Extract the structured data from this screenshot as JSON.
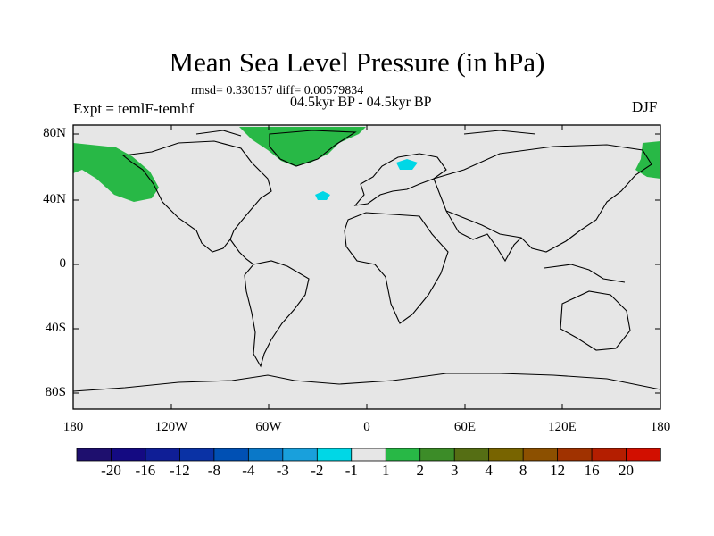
{
  "title": "Mean Sea Level Pressure (in hPa)",
  "stats": "rmsd= 0.330157 diff= 0.00579834",
  "subtitle": "04.5kyr BP - 04.5kyr BP",
  "experiment": "Expt = temlF-temhf",
  "season": "DJF",
  "axes": {
    "y_ticks": [
      "80N",
      "40N",
      "0",
      "40S",
      "80S"
    ],
    "x_ticks": [
      "180",
      "120W",
      "60W",
      "0",
      "60E",
      "120E",
      "180"
    ]
  },
  "colorbar": {
    "labels": [
      "-20",
      "-16",
      "-12",
      "-8",
      "-4",
      "-3",
      "-2",
      "-1",
      "1",
      "2",
      "3",
      "4",
      "8",
      "12",
      "16",
      "20"
    ],
    "colors": [
      "#1e0f6e",
      "#140a82",
      "#0f1e96",
      "#0a32a5",
      "#0050b4",
      "#0a78c8",
      "#19a0dc",
      "#00d7e6",
      "#e6e6e6",
      "#28b846",
      "#3c8c28",
      "#556e14",
      "#786400",
      "#8c5000",
      "#a03200",
      "#b41e00",
      "#d20f00"
    ]
  },
  "map": {
    "land_color": "#e6e6e6",
    "positive_anomaly_color": "#28b846",
    "negative_anomaly_color": "#00d7e6"
  }
}
